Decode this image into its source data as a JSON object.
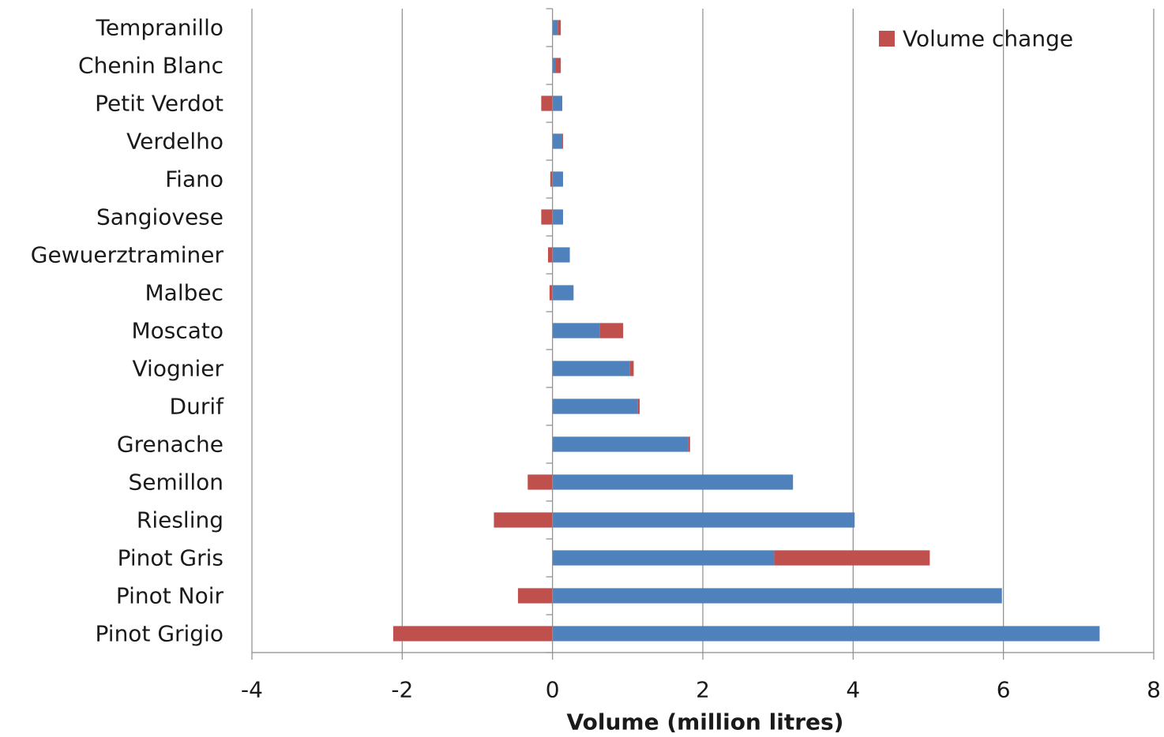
{
  "chart_data": {
    "type": "bar",
    "orientation": "horizontal",
    "stacked": true,
    "categories": [
      "Tempranillo",
      "Chenin Blanc",
      "Petit Verdot",
      "Verdelho",
      "Fiano",
      "Sangiovese",
      "Gewuerztraminer",
      "Malbec",
      "Moscato",
      "Viognier",
      "Durif",
      "Grenache",
      "Semillon",
      "Riesling",
      "Pinot Gris",
      "Pinot Noir",
      "Pinot Grigio"
    ],
    "series": [
      {
        "values": [
          0.07,
          0.04,
          0.13,
          0.13,
          0.14,
          0.14,
          0.23,
          0.28,
          0.63,
          1.03,
          1.13,
          1.81,
          3.2,
          4.02,
          2.95,
          5.98,
          7.28
        ],
        "color": "#4f81bd"
      },
      {
        "name": "Volume change",
        "values": [
          0.04,
          0.07,
          -0.15,
          0.01,
          -0.03,
          -0.15,
          -0.06,
          -0.04,
          0.31,
          0.05,
          0.03,
          0.02,
          -0.33,
          -0.78,
          2.07,
          -0.46,
          -2.12
        ],
        "color": "#c0504d"
      }
    ],
    "title": "",
    "xlabel": "Volume (million litres)",
    "ylabel": "",
    "xlim": [
      -4,
      8
    ],
    "xticks": [
      -4,
      -2,
      0,
      2,
      4,
      6,
      8
    ],
    "grid": "vertical",
    "legend": "top-right"
  }
}
